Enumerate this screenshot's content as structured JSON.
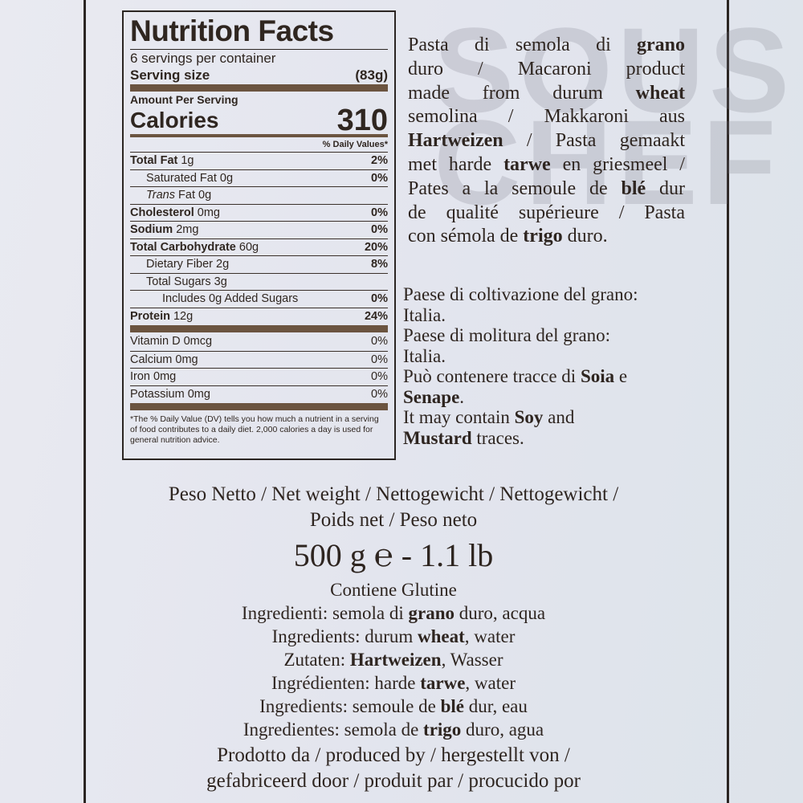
{
  "watermark": "SOUS\nCHEF",
  "nutrition": {
    "title": "Nutrition Facts",
    "servings": "6 servings per container",
    "serving_size_label": "Serving size",
    "serving_size_value": "(83g)",
    "amount_per_serving": "Amount Per Serving",
    "calories_label": "Calories",
    "calories_value": "310",
    "dv_header": "% Daily Values*",
    "rows": [
      {
        "b": "Total Fat",
        "v": " 1g",
        "dv": "2%",
        "indent": 0
      },
      {
        "b": "",
        "v": "Saturated Fat 0g",
        "dv": "0%",
        "indent": 1
      },
      {
        "b": "",
        "v": "Trans Fat 0g",
        "dv": "",
        "indent": 1,
        "italic": "Trans"
      },
      {
        "b": "Cholesterol",
        "v": " 0mg",
        "dv": "0%",
        "indent": 0
      },
      {
        "b": "Sodium",
        "v": " 2mg",
        "dv": "0%",
        "indent": 0
      },
      {
        "b": "Total Carbohydrate",
        "v": " 60g",
        "dv": "20%",
        "indent": 0
      },
      {
        "b": "",
        "v": "Dietary Fiber 2g",
        "dv": "8%",
        "indent": 1
      },
      {
        "b": "",
        "v": "Total Sugars 3g",
        "dv": "",
        "indent": 1
      },
      {
        "b": "",
        "v": "Includes 0g Added Sugars",
        "dv": "0%",
        "indent": 2
      },
      {
        "b": "Protein",
        "v": " 12g",
        "dv": "24%",
        "indent": 0
      }
    ],
    "vitamins": [
      {
        "v": "Vitamin D 0mcg",
        "dv": "0%"
      },
      {
        "v": "Calcium 0mg",
        "dv": "0%"
      },
      {
        "v": "Iron 0mg",
        "dv": "0%"
      },
      {
        "v": "Potassium 0mg",
        "dv": "0%"
      }
    ],
    "footnote": "*The % Daily Value (DV) tells you how much a nutrient in a serving of food contributes to a daily diet. 2,000 calories a day is used for general nutrition advice."
  },
  "description_lines": [
    [
      {
        "t": "Pasta di semola di "
      },
      {
        "t": "grano",
        "b": true
      }
    ],
    [
      {
        "t": "duro / Macaroni product"
      }
    ],
    [
      {
        "t": "made from durum "
      },
      {
        "t": "wheat",
        "b": true
      }
    ],
    [
      {
        "t": "semolina / Makkaroni aus"
      }
    ],
    [
      {
        "t": "Hartweizen",
        "b": true
      },
      {
        "t": " / Pasta gemaakt"
      }
    ],
    [
      {
        "t": "met harde "
      },
      {
        "t": "tarwe",
        "b": true
      },
      {
        "t": " en griesmeel /"
      }
    ],
    [
      {
        "t": "Pates a la semoule de "
      },
      {
        "t": "blé",
        "b": true
      },
      {
        "t": " dur"
      }
    ],
    [
      {
        "t": "de qualité supérieure / Pasta"
      }
    ],
    [
      {
        "t": "con sémola de "
      },
      {
        "t": "trigo",
        "b": true
      },
      {
        "t": " duro."
      }
    ]
  ],
  "origin_lines": [
    [
      {
        "t": "Paese di coltivazione del grano:"
      }
    ],
    [
      {
        "t": "Italia."
      }
    ],
    [
      {
        "t": "Paese di molitura del grano:"
      }
    ],
    [
      {
        "t": "Italia."
      }
    ],
    [
      {
        "t": "Può contenere tracce di "
      },
      {
        "t": "Soia",
        "b": true
      },
      {
        "t": " e"
      }
    ],
    [
      {
        "t": "Senape",
        "b": true
      },
      {
        "t": "."
      }
    ],
    [
      {
        "t": "It may contain "
      },
      {
        "t": "Soy",
        "b": true
      },
      {
        "t": " and"
      }
    ],
    [
      {
        "t": "Mustard",
        "b": true
      },
      {
        "t": " traces."
      }
    ]
  ],
  "net_weight_lines": [
    "Peso Netto / Net weight / Nettogewicht / Nettogewicht /",
    "Poids net / Peso neto"
  ],
  "weight": "500 g ℮ - 1.1 lb",
  "contains": "Contiene Glutine",
  "ingredient_lines": [
    [
      {
        "t": "Ingredienti: semola di "
      },
      {
        "t": "grano",
        "b": true
      },
      {
        "t": " duro, acqua"
      }
    ],
    [
      {
        "t": "Ingredients: durum "
      },
      {
        "t": "wheat",
        "b": true
      },
      {
        "t": ", water"
      }
    ],
    [
      {
        "t": "Zutaten: "
      },
      {
        "t": "Hartweizen",
        "b": true
      },
      {
        "t": ", Wasser"
      }
    ],
    [
      {
        "t": "Ingrédienten: harde "
      },
      {
        "t": "tarwe",
        "b": true
      },
      {
        "t": ", water"
      }
    ],
    [
      {
        "t": "Ingredients: semoule de "
      },
      {
        "t": "blé",
        "b": true
      },
      {
        "t": " dur, eau"
      }
    ],
    [
      {
        "t": "Ingredientes: semola de "
      },
      {
        "t": "trigo",
        "b": true
      },
      {
        "t": " duro, agua"
      }
    ]
  ],
  "producer_lines": [
    "Prodotto da / produced by / hergestellt von /",
    "gefabriceerd door / produit par / procucido por"
  ]
}
